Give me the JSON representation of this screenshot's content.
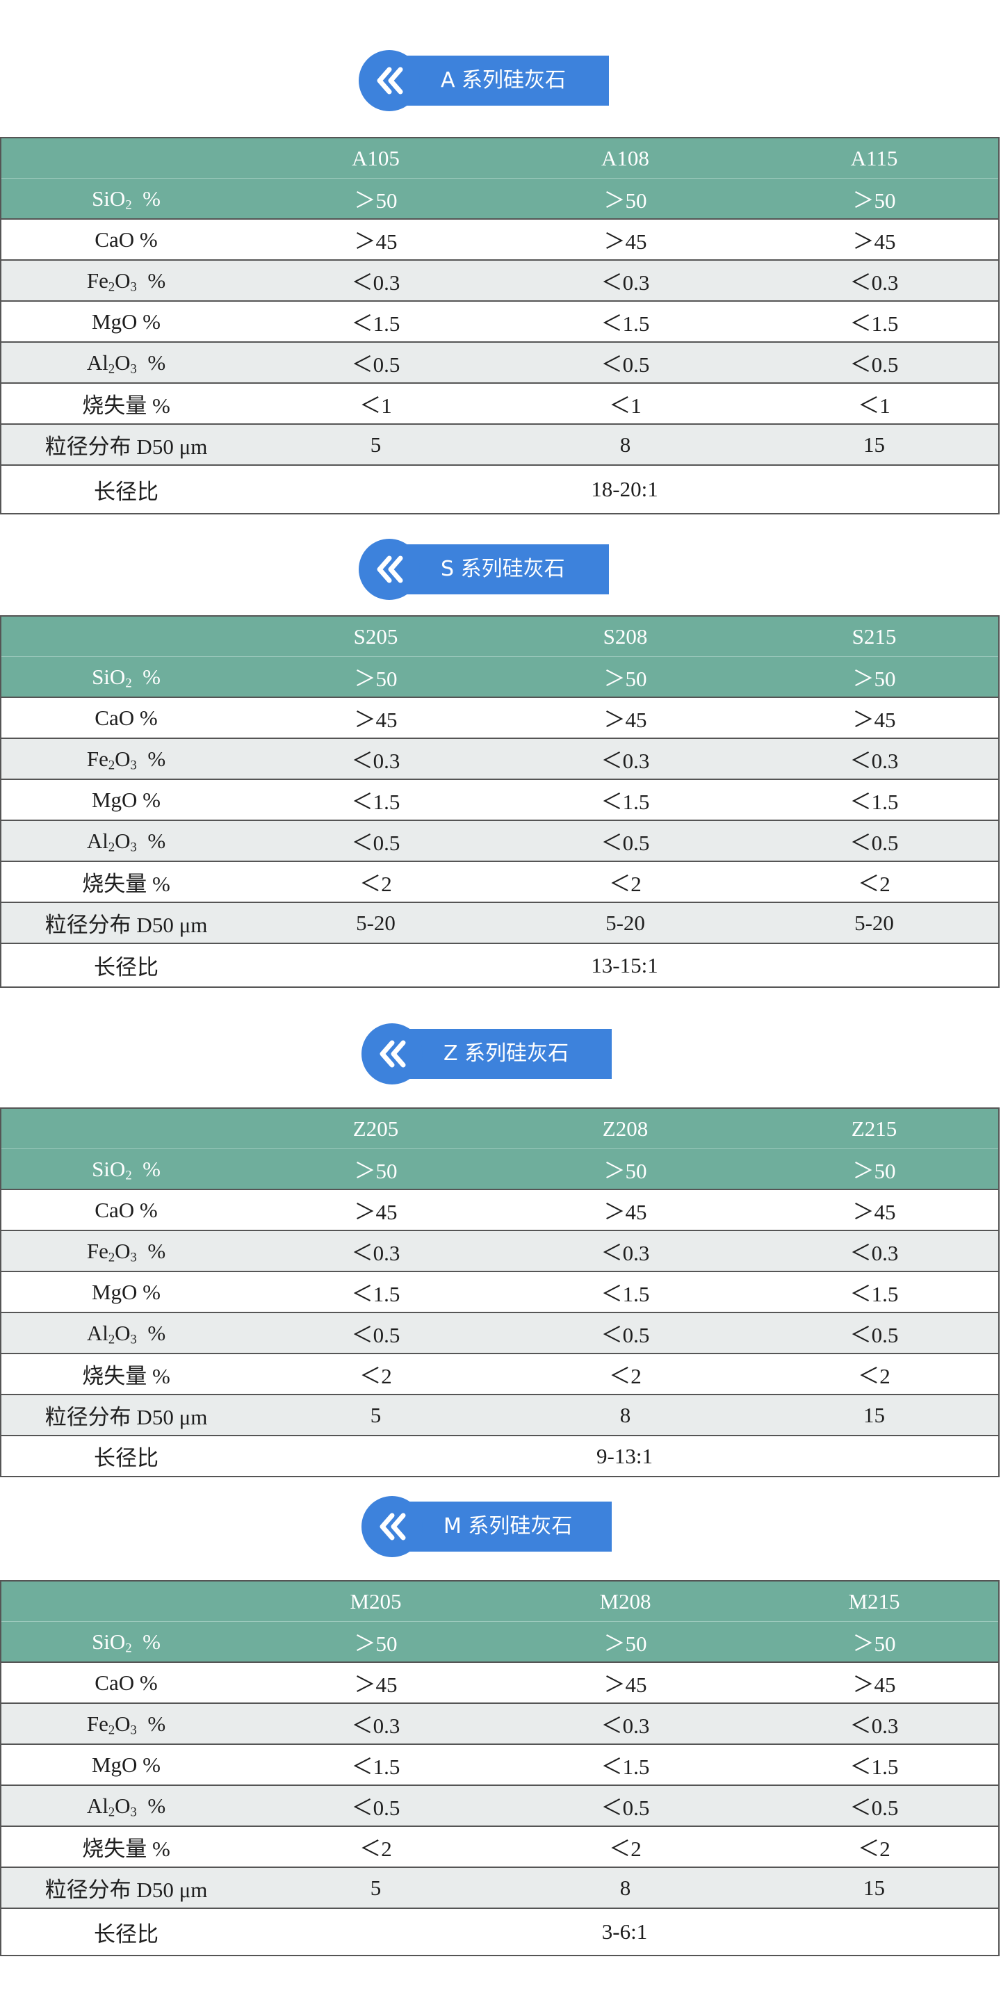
{
  "sections": [
    {
      "title": "A 系列硅灰石",
      "models": [
        "A105",
        "A108",
        "A115"
      ],
      "rows": {
        "sio2": [
          "＞50",
          "＞50",
          "＞50"
        ],
        "cao": [
          "＞45",
          "＞45",
          "＞45"
        ],
        "fe2o3": [
          "＜0.3",
          "＜0.3",
          "＜0.3"
        ],
        "mgo": [
          "＜1.5",
          "＜1.5",
          "＜1.5"
        ],
        "al2o3": [
          "＜0.5",
          "＜0.5",
          "＜0.5"
        ],
        "loss": [
          "＜1",
          "＜1",
          "＜1"
        ],
        "d50": [
          "5",
          "8",
          "15"
        ]
      },
      "aspect_ratio": "18-20:1"
    },
    {
      "title": "S 系列硅灰石",
      "models": [
        "S205",
        "S208",
        "S215"
      ],
      "rows": {
        "sio2": [
          "＞50",
          "＞50",
          "＞50"
        ],
        "cao": [
          "＞45",
          "＞45",
          "＞45"
        ],
        "fe2o3": [
          "＜0.3",
          "＜0.3",
          "＜0.3"
        ],
        "mgo": [
          "＜1.5",
          "＜1.5",
          "＜1.5"
        ],
        "al2o3": [
          "＜0.5",
          "＜0.5",
          "＜0.5"
        ],
        "loss": [
          "＜2",
          "＜2",
          "＜2"
        ],
        "d50": [
          "5-20",
          "5-20",
          "5-20"
        ]
      },
      "aspect_ratio": "13-15:1"
    },
    {
      "title": "Z 系列硅灰石",
      "models": [
        "Z205",
        "Z208",
        "Z215"
      ],
      "rows": {
        "sio2": [
          "＞50",
          "＞50",
          "＞50"
        ],
        "cao": [
          "＞45",
          "＞45",
          "＞45"
        ],
        "fe2o3": [
          "＜0.3",
          "＜0.3",
          "＜0.3"
        ],
        "mgo": [
          "＜1.5",
          "＜1.5",
          "＜1.5"
        ],
        "al2o3": [
          "＜0.5",
          "＜0.5",
          "＜0.5"
        ],
        "loss": [
          "＜2",
          "＜2",
          "＜2"
        ],
        "d50": [
          "5",
          "8",
          "15"
        ]
      },
      "aspect_ratio": "9-13:1"
    },
    {
      "title": "M 系列硅灰石",
      "models": [
        "M205",
        "M208",
        "M215"
      ],
      "rows": {
        "sio2": [
          "＞50",
          "＞50",
          "＞50"
        ],
        "cao": [
          "＞45",
          "＞45",
          "＞45"
        ],
        "fe2o3": [
          "＜0.3",
          "＜0.3",
          "＜0.3"
        ],
        "mgo": [
          "＜1.5",
          "＜1.5",
          "＜1.5"
        ],
        "al2o3": [
          "＜0.5",
          "＜0.5",
          "＜0.5"
        ],
        "loss": [
          "＜2",
          "＜2",
          "＜2"
        ],
        "d50": [
          "5",
          "8",
          "15"
        ]
      },
      "aspect_ratio": "3-6:1"
    }
  ],
  "labels": {
    "sio2_a": "SiO",
    "sio2_sub": "2",
    "sio2_unit": "%",
    "cao": "CaO  %",
    "fe2o3_a": "Fe",
    "fe2o3_sub1": "2",
    "fe2o3_b": "O",
    "fe2o3_sub2": "3",
    "fe2o3_unit": "%",
    "mgo": "MgO  %",
    "al2o3_a": "Al",
    "al2o3_sub1": "2",
    "al2o3_b": "O",
    "al2o3_sub2": "3",
    "al2o3_unit": "%",
    "loss": "烧失量  %",
    "d50": "粒径分布 D50 μm",
    "aspect": "长径比"
  },
  "colors": {
    "accent_blue": "#3d82dc",
    "header_green": "#6fae9c",
    "row_alt": "#e9ecec"
  },
  "icon": "double-chevron-left-icon"
}
